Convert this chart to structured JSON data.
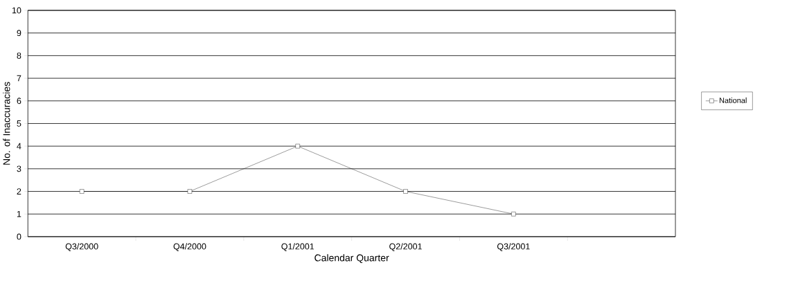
{
  "chart_data": {
    "type": "line",
    "xlabel": "Calendar Quarter",
    "ylabel": "No. of Inaccuracies",
    "categories": [
      "Q3/2000",
      "Q4/2000",
      "Q1/2001",
      "Q2/2001",
      "Q3/2001",
      null
    ],
    "series": [
      {
        "name": "National",
        "color": "#000000",
        "values": [
          2,
          2,
          4,
          2,
          1,
          null
        ]
      }
    ],
    "ylim": [
      0,
      10
    ],
    "yticks": [
      0,
      1,
      2,
      3,
      4,
      5,
      6,
      7,
      8,
      9,
      10
    ],
    "grid": "y",
    "legend": "right",
    "marker": "square",
    "line_style": "solid"
  }
}
